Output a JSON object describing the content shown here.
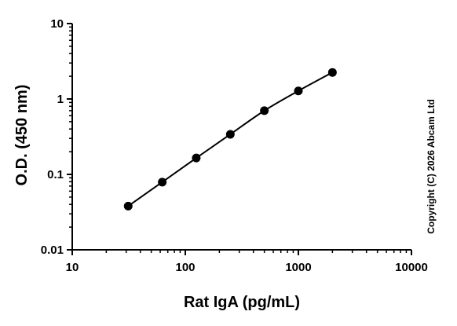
{
  "chart_data": {
    "type": "scatter",
    "xlabel": "Rat IgA (pg/mL)",
    "ylabel": "O.D. (450 nm)",
    "x_scale": "log",
    "y_scale": "log",
    "xlim": [
      10,
      10000
    ],
    "ylim": [
      0.01,
      10
    ],
    "x_ticks": [
      "10",
      "100",
      "1000",
      "10000"
    ],
    "y_ticks": [
      "0.01",
      "0.1",
      "1",
      "10"
    ],
    "grid": false,
    "series": [
      {
        "x": [
          31.25,
          62.5,
          125,
          250,
          500,
          1000,
          2000
        ],
        "y": [
          0.038,
          0.079,
          0.165,
          0.34,
          0.7,
          1.28,
          2.25
        ]
      }
    ],
    "fit_line": true,
    "colors": {
      "marker": "#000000",
      "line": "#000000"
    }
  },
  "copyright": "Copyright (C) 2026 Abcam Ltd"
}
